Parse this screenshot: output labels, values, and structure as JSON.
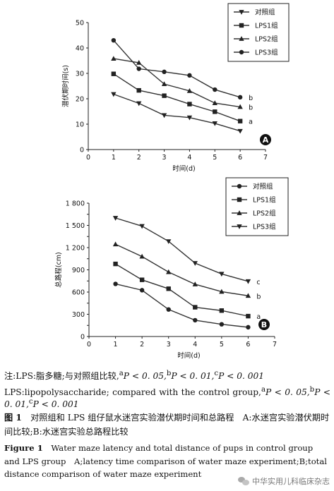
{
  "chart_data": [
    {
      "type": "line",
      "panel_label": "A",
      "xlabel": "时间(d)",
      "ylabel": "潜伏期时间(s)",
      "xlim": [
        0,
        7
      ],
      "ylim": [
        0,
        50
      ],
      "xticks": [
        0,
        1,
        2,
        3,
        4,
        5,
        6,
        7
      ],
      "yticks": [
        0,
        10,
        20,
        30,
        40,
        50
      ],
      "x": [
        1,
        2,
        3,
        4,
        5,
        6
      ],
      "grid": false,
      "legend_position": "top-right",
      "series": [
        {
          "name": "对照组",
          "marker": "triangle-down",
          "values": [
            21.8,
            18.2,
            13.5,
            12.6,
            10.3,
            7.3
          ],
          "end_label": ""
        },
        {
          "name": "LPS1组",
          "marker": "square",
          "values": [
            29.8,
            23.3,
            21.2,
            17.9,
            14.9,
            11.2
          ],
          "end_label": "a"
        },
        {
          "name": "LPS2组",
          "marker": "triangle-up",
          "values": [
            35.8,
            34.2,
            25.8,
            23.1,
            18.3,
            16.8
          ],
          "end_label": "b"
        },
        {
          "name": "LPS3组",
          "marker": "circle",
          "values": [
            43.0,
            31.8,
            30.6,
            29.2,
            23.6,
            20.6
          ],
          "end_label": "b"
        }
      ]
    },
    {
      "type": "line",
      "panel_label": "B",
      "xlabel": "时间(d)",
      "ylabel": "总路程(cm)",
      "xlim": [
        0,
        7
      ],
      "ylim": [
        0,
        1800
      ],
      "xticks": [
        0,
        1,
        2,
        3,
        4,
        5,
        6,
        7
      ],
      "yticks": [
        0,
        150,
        300,
        450,
        600,
        750,
        900,
        1050,
        1200,
        1350,
        1500,
        1650,
        1800
      ],
      "ytick_labels": [
        "0",
        "",
        "300",
        "",
        "600",
        "",
        "900",
        "",
        "1 200",
        "",
        "1 500",
        "",
        "1 800"
      ],
      "x": [
        1,
        2,
        3,
        4,
        5,
        6
      ],
      "grid": false,
      "legend_position": "top-right",
      "series": [
        {
          "name": "对照组",
          "marker": "circle",
          "values": [
            710,
            625,
            365,
            220,
            165,
            125
          ],
          "end_label": ""
        },
        {
          "name": "LPS1组",
          "marker": "square",
          "values": [
            980,
            765,
            645,
            395,
            350,
            275
          ],
          "end_label": "a"
        },
        {
          "name": "LPS2组",
          "marker": "triangle-up",
          "values": [
            1245,
            1080,
            870,
            705,
            605,
            550
          ],
          "end_label": "b"
        },
        {
          "name": "LPS3组",
          "marker": "triangle-down",
          "values": [
            1600,
            1490,
            1285,
            990,
            845,
            745
          ],
          "end_label": "c"
        }
      ]
    }
  ],
  "caption": {
    "note_line1_prefix": "注:LPS:脂多糖;与对照组比较,",
    "note_line1_sup_a": "a",
    "note_line1_p_a": "P < 0. 05,",
    "note_line1_sup_b": "b",
    "note_line1_p_b": "P < 0. 01,",
    "note_line1_sup_c": "c",
    "note_line1_p_c": "P < 0. 001",
    "note_line2_prefix": "LPS:lipopolysaccharide; compared with the control group,",
    "note_line2_sup_a": "a",
    "note_line2_p_a": "P < 0. 05,",
    "note_line2_sup_b": "b",
    "note_line2_p_b": "P <",
    "note_line3_p_b_val": "0. 01,",
    "note_line3_sup_c": "c",
    "note_line3_p_c": "P < 0. 001",
    "cn_fig_label": "图 1",
    "cn_title": "对照组和 LPS 组仔鼠水迷宫实验潜伏期时间和总路程　A:水迷宫实验潜伏期时间比较;B:水迷宫实验总路程比较",
    "en_fig_label": "Figure 1",
    "en_title": "Water maze latency and total distance of pups in control group and LPS group　A;latency time comparison of water maze experiment;B;total distance comparison of water maze experiment"
  },
  "watermark": {
    "text": "中华实用儿科临床杂志",
    "icon": "wechat-icon"
  }
}
